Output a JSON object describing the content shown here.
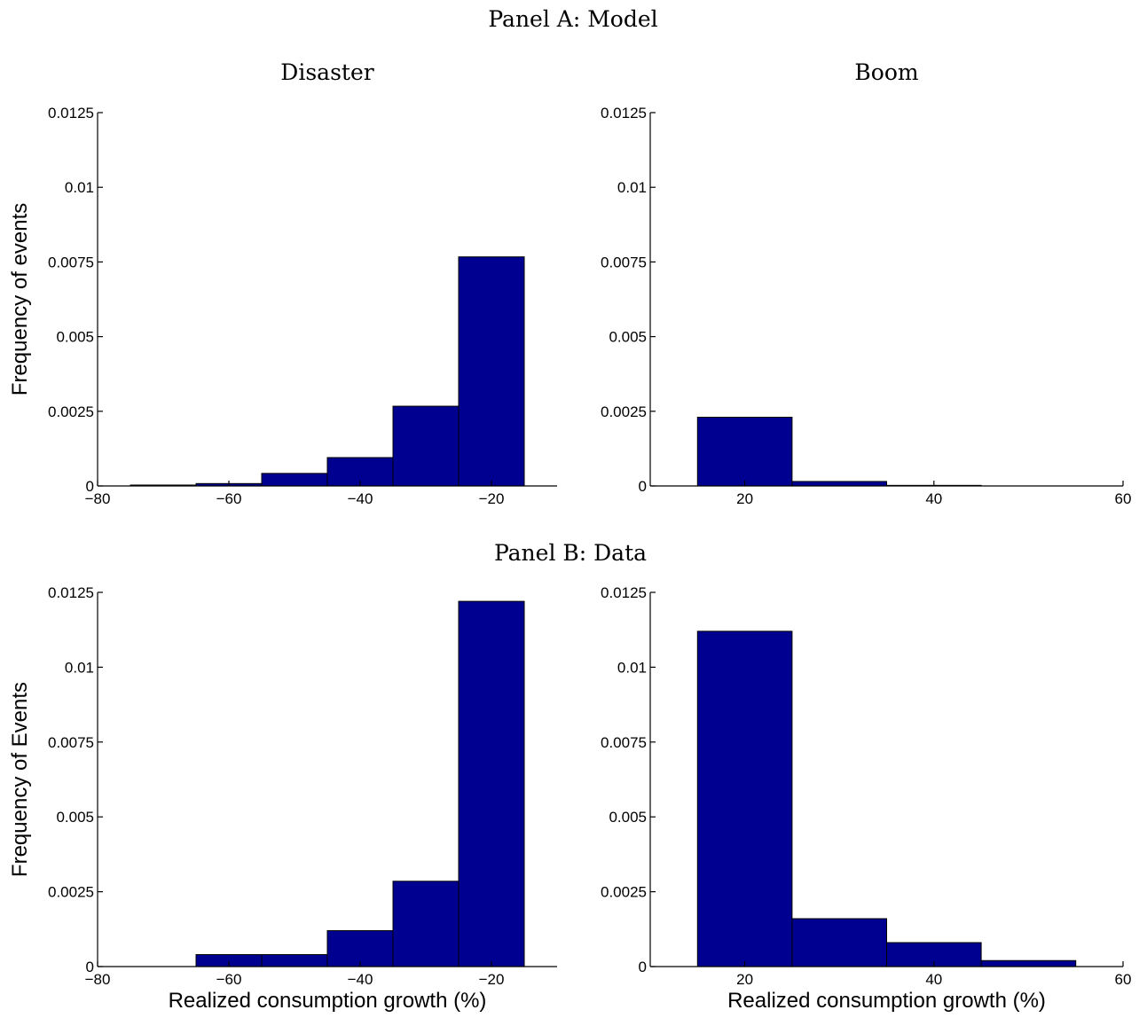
{
  "panels": [
    {
      "title": "Panel A: Model"
    },
    {
      "title": "Panel B: Data"
    }
  ],
  "chart_data": [
    {
      "type": "bar",
      "panel": "Panel A: Model",
      "title": "Disaster",
      "xlabel": "",
      "ylabel": "Frequency of events",
      "xlim": [
        -80,
        -10
      ],
      "ylim": [
        0,
        0.0125
      ],
      "xticks": [
        -80,
        -60,
        -40,
        -20
      ],
      "yticks": [
        0,
        0.0025,
        0.005,
        0.0075,
        0.01,
        0.0125
      ],
      "bin_width": 10,
      "bin_centers": [
        -70,
        -60,
        -50,
        -40,
        -30,
        -20
      ],
      "values": [
        3e-05,
        8e-05,
        0.00042,
        0.00095,
        0.00267,
        0.00767
      ],
      "bar_color": "#000090"
    },
    {
      "type": "bar",
      "panel": "Panel A: Model",
      "title": "Boom",
      "xlabel": "",
      "ylabel": "",
      "xlim": [
        10,
        60
      ],
      "ylim": [
        0,
        0.0125
      ],
      "xticks": [
        20,
        40,
        60
      ],
      "yticks": [
        0,
        0.0025,
        0.005,
        0.0075,
        0.01,
        0.0125
      ],
      "bin_width": 10,
      "bin_centers": [
        20,
        30,
        40
      ],
      "values": [
        0.0023,
        0.00015,
        2e-05
      ],
      "bar_color": "#000090"
    },
    {
      "type": "bar",
      "panel": "Panel B: Data",
      "title": "",
      "xlabel": "Realized consumption growth (%)",
      "ylabel": "Frequency of Events",
      "xlim": [
        -80,
        -10
      ],
      "ylim": [
        0,
        0.0125
      ],
      "xticks": [
        -80,
        -60,
        -40,
        -20
      ],
      "yticks": [
        0,
        0.0025,
        0.005,
        0.0075,
        0.01,
        0.0125
      ],
      "bin_width": 10,
      "bin_centers": [
        -60,
        -50,
        -40,
        -30,
        -20
      ],
      "values": [
        0.0004,
        0.0004,
        0.0012,
        0.00285,
        0.0122
      ],
      "bar_color": "#000090"
    },
    {
      "type": "bar",
      "panel": "Panel B: Data",
      "title": "",
      "xlabel": "Realized consumption growth (%)",
      "ylabel": "",
      "xlim": [
        10,
        60
      ],
      "ylim": [
        0,
        0.0125
      ],
      "xticks": [
        20,
        40,
        60
      ],
      "yticks": [
        0,
        0.0025,
        0.005,
        0.0075,
        0.01,
        0.0125
      ],
      "bin_width": 10,
      "bin_centers": [
        20,
        30,
        40,
        50
      ],
      "values": [
        0.0112,
        0.0016,
        0.0008,
        0.0002
      ],
      "bar_color": "#000090"
    }
  ]
}
